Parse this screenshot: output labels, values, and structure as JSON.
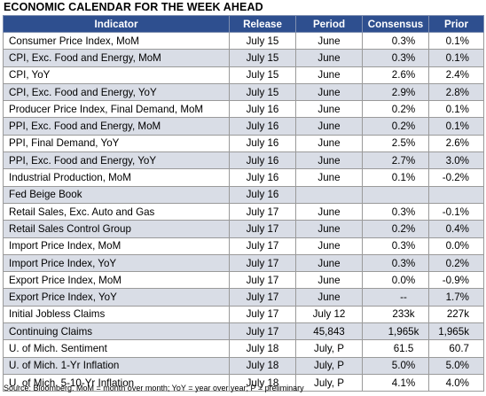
{
  "title": "ECONOMIC CALENDAR FOR THE WEEK AHEAD",
  "columns": [
    "Indicator",
    "Release",
    "Period",
    "Consensus",
    "Prior"
  ],
  "rows": [
    {
      "indicator": "Consumer Price Index, MoM",
      "release": "July 15",
      "period": "June",
      "consensus": "0.3%",
      "prior": "0.1%"
    },
    {
      "indicator": "CPI, Exc. Food and Energy, MoM",
      "release": "July 15",
      "period": "June",
      "consensus": "0.3%",
      "prior": "0.1%"
    },
    {
      "indicator": "CPI, YoY",
      "release": "July 15",
      "period": "June",
      "consensus": "2.6%",
      "prior": "2.4%"
    },
    {
      "indicator": "CPI, Exc. Food and Energy, YoY",
      "release": "July 15",
      "period": "June",
      "consensus": "2.9%",
      "prior": "2.8%"
    },
    {
      "indicator": "Producer Price Index, Final Demand, MoM",
      "release": "July 16",
      "period": "June",
      "consensus": "0.2%",
      "prior": "0.1%"
    },
    {
      "indicator": "PPI, Exc. Food and Energy, MoM",
      "release": "July 16",
      "period": "June",
      "consensus": "0.2%",
      "prior": "0.1%"
    },
    {
      "indicator": "PPI, Final Demand, YoY",
      "release": "July 16",
      "period": "June",
      "consensus": "2.5%",
      "prior": "2.6%"
    },
    {
      "indicator": "PPI, Exc. Food and Energy, YoY",
      "release": "July 16",
      "period": "June",
      "consensus": "2.7%",
      "prior": "3.0%"
    },
    {
      "indicator": "Industrial Production, MoM",
      "release": "July 16",
      "period": "June",
      "consensus": "0.1%",
      "prior": "-0.2%"
    },
    {
      "indicator": "Fed Beige Book",
      "release": "July 16",
      "period": "",
      "consensus": "",
      "prior": ""
    },
    {
      "indicator": "Retail Sales, Exc. Auto and Gas",
      "release": "July 17",
      "period": "June",
      "consensus": "0.3%",
      "prior": "-0.1%"
    },
    {
      "indicator": "Retail Sales Control Group",
      "release": "July 17",
      "period": "June",
      "consensus": "0.2%",
      "prior": "0.4%"
    },
    {
      "indicator": "Import Price Index, MoM",
      "release": "July 17",
      "period": "June",
      "consensus": "0.3%",
      "prior": "0.0%"
    },
    {
      "indicator": "Import Price Index, YoY",
      "release": "July 17",
      "period": "June",
      "consensus": "0.3%",
      "prior": "0.2%"
    },
    {
      "indicator": "Export Price Index, MoM",
      "release": "July 17",
      "period": "June",
      "consensus": "0.0%",
      "prior": "-0.9%"
    },
    {
      "indicator": "Export Price Index, YoY",
      "release": "July 17",
      "period": "June",
      "consensus": "--",
      "prior": "1.7%"
    },
    {
      "indicator": "Initial Jobless Claims",
      "release": "July 17",
      "period": "July 12",
      "consensus": "233k",
      "prior": "227k"
    },
    {
      "indicator": "Continuing Claims",
      "release": "July 17",
      "period": "45,843",
      "consensus": "1,965k",
      "prior": "1,965k"
    },
    {
      "indicator": "U. of Mich. Sentiment",
      "release": "July 18",
      "period": "July, P",
      "consensus": "61.5",
      "prior": "60.7"
    },
    {
      "indicator": "U. of Mich. 1-Yr Inflation",
      "release": "July 18",
      "period": "July, P",
      "consensus": "5.0%",
      "prior": "5.0%"
    },
    {
      "indicator": "U. of Mich. 5-10-Yr Inflation",
      "release": "July 18",
      "period": "July, P",
      "consensus": "4.1%",
      "prior": "4.0%"
    }
  ],
  "source": "Source: Bloomberg. MoM = month over month; YoY = year over year; P = preliminary",
  "colors": {
    "header_bg": "#2e4f8f",
    "header_text": "#ffffff",
    "alt_row": "#d9dde6",
    "border": "#9a9a9a"
  }
}
